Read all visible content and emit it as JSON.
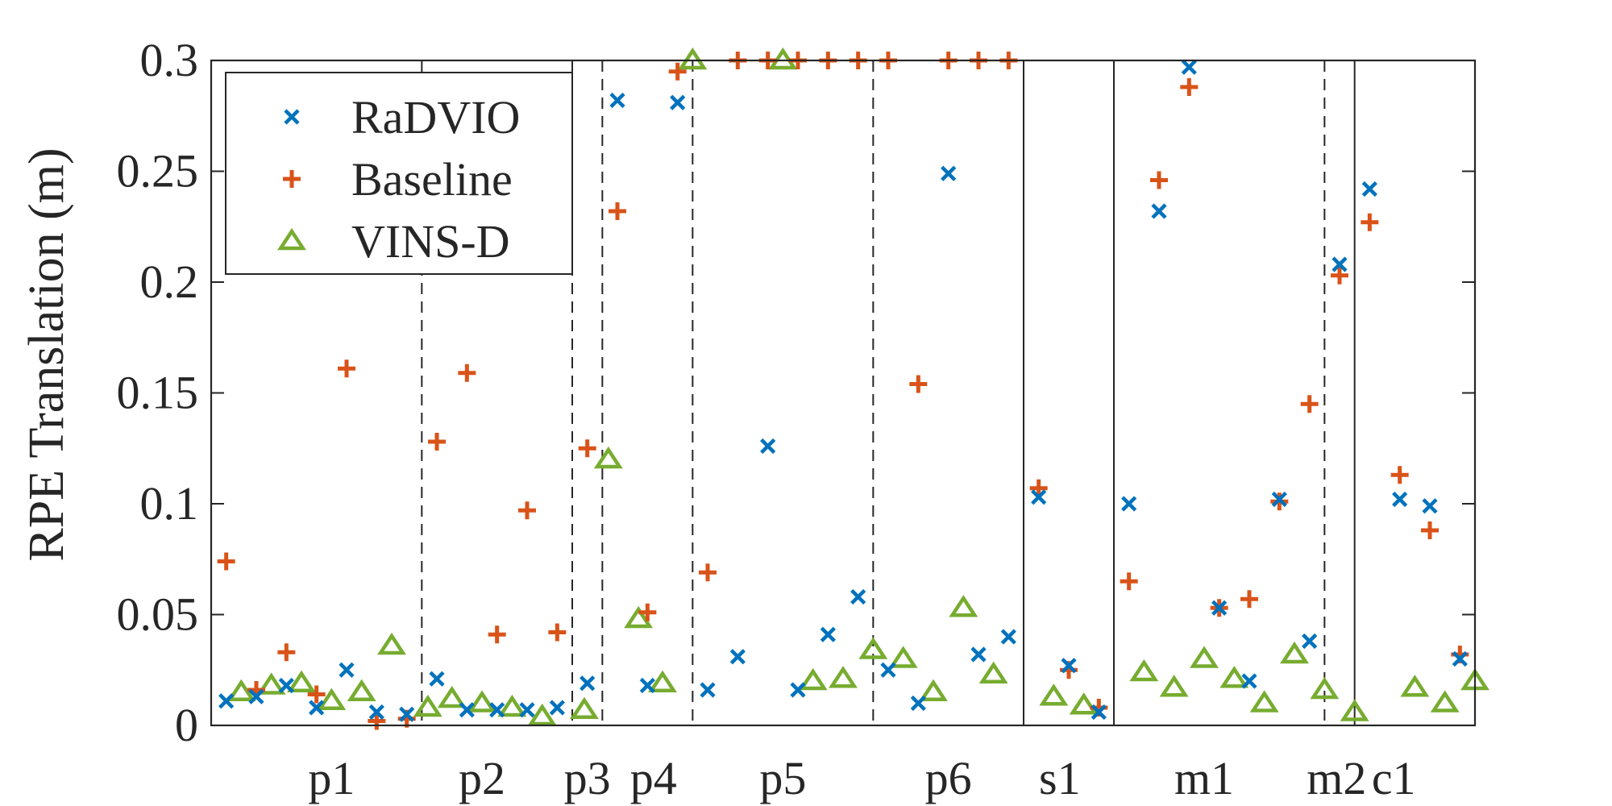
{
  "chart_data": {
    "type": "scatter",
    "title": "",
    "xlabel": "",
    "ylabel": "RPE Translation (m)",
    "ylim": [
      0,
      0.3
    ],
    "xlim": [
      0,
      42
    ],
    "yticks": [
      0,
      0.05,
      0.1,
      0.15,
      0.2,
      0.25,
      0.3
    ],
    "ytick_labels": [
      "0",
      "0.05",
      "0.1",
      "0.15",
      "0.2",
      "0.25",
      "0.3"
    ],
    "legend_position": "top-left",
    "groups": [
      {
        "label": "p1",
        "center": 4
      },
      {
        "label": "p2",
        "center": 9
      },
      {
        "label": "p3",
        "center": 12.5
      },
      {
        "label": "p4",
        "center": 14.7
      },
      {
        "label": "p5",
        "center": 19
      },
      {
        "label": "p6",
        "center": 24.5
      },
      {
        "label": "s1",
        "center": 28.2
      },
      {
        "label": "m1",
        "center": 33
      },
      {
        "label": "m2",
        "center": 37.4
      },
      {
        "label": "c1",
        "center": 39.3
      }
    ],
    "separators": [
      {
        "x": 7,
        "style": "dashed"
      },
      {
        "x": 12,
        "style": "dashed"
      },
      {
        "x": 13,
        "style": "dashed"
      },
      {
        "x": 16,
        "style": "dashed"
      },
      {
        "x": 22,
        "style": "dashed"
      },
      {
        "x": 27,
        "style": "solid"
      },
      {
        "x": 30,
        "style": "solid"
      },
      {
        "x": 37,
        "style": "dashed"
      },
      {
        "x": 38,
        "style": "solid"
      }
    ],
    "series": [
      {
        "name": "RaDVIO",
        "marker": "x",
        "color": "#0072BD",
        "x": [
          0.5,
          1.5,
          2.5,
          3.5,
          4.5,
          5.5,
          6.5,
          7.5,
          8.5,
          9.5,
          10.5,
          11.5,
          12.5,
          13.5,
          14.5,
          15.5,
          16.5,
          17.5,
          18.5,
          19.5,
          20.5,
          21.5,
          22.5,
          23.5,
          24.5,
          25.5,
          26.5,
          27.5,
          28.5,
          29.5,
          30.5,
          31.5,
          32.5,
          33.5,
          34.5,
          35.5,
          36.5,
          37.5,
          38.5,
          39.5,
          40.5,
          41.5
        ],
        "y": [
          0.011,
          0.013,
          0.018,
          0.008,
          0.025,
          0.006,
          0.005,
          0.021,
          0.007,
          0.007,
          0.007,
          0.008,
          0.019,
          0.282,
          0.018,
          0.281,
          0.016,
          0.031,
          0.126,
          0.016,
          0.041,
          0.058,
          0.025,
          0.01,
          0.249,
          0.032,
          0.04,
          0.103,
          0.027,
          0.006,
          0.1,
          0.232,
          0.297,
          0.053,
          0.02,
          0.102,
          0.038,
          0.208,
          0.242,
          0.102,
          0.099,
          0.03
        ]
      },
      {
        "name": "Baseline",
        "marker": "+",
        "color": "#D95319",
        "x": [
          0.5,
          1.5,
          2.5,
          3.5,
          4.5,
          5.5,
          6.5,
          7.5,
          8.5,
          9.5,
          10.5,
          11.5,
          12.5,
          13.5,
          14.5,
          15.5,
          16.5,
          17.5,
          18.5,
          19.5,
          20.5,
          21.5,
          22.5,
          23.5,
          24.5,
          25.5,
          26.5,
          27.5,
          28.5,
          29.5,
          30.5,
          31.5,
          32.5,
          33.5,
          34.5,
          35.5,
          36.5,
          37.5,
          38.5,
          39.5,
          40.5,
          41.5
        ],
        "y": [
          0.074,
          0.016,
          0.033,
          0.014,
          0.161,
          0.002,
          0.003,
          0.128,
          0.159,
          0.041,
          0.097,
          0.042,
          0.125,
          0.232,
          0.051,
          0.295,
          0.069,
          0.3,
          0.3,
          0.3,
          0.3,
          0.3,
          0.3,
          0.154,
          0.3,
          0.3,
          0.3,
          0.107,
          0.025,
          0.008,
          0.065,
          0.246,
          0.288,
          0.053,
          0.057,
          0.101,
          0.145,
          0.203,
          0.227,
          0.113,
          0.088,
          0.032
        ]
      },
      {
        "name": "VINS-D",
        "marker": "triangle",
        "color": "#77AC30",
        "x": [
          1,
          2,
          3,
          4,
          5,
          6,
          7.2,
          8,
          9,
          10,
          11,
          12.4,
          13.2,
          14.2,
          15,
          16,
          19,
          20,
          21,
          22,
          23,
          24,
          25,
          26,
          28,
          29,
          31,
          32,
          33,
          34,
          35,
          36,
          37,
          38,
          40,
          41,
          42
        ],
        "y": [
          0.015,
          0.018,
          0.019,
          0.011,
          0.015,
          0.036,
          0.008,
          0.012,
          0.01,
          0.008,
          0.004,
          0.007,
          0.12,
          0.048,
          0.019,
          0.3,
          0.3,
          0.02,
          0.021,
          0.034,
          0.03,
          0.015,
          0.053,
          0.023,
          0.013,
          0.009,
          0.024,
          0.017,
          0.03,
          0.021,
          0.01,
          0.032,
          0.016,
          0.006,
          0.017,
          0.01,
          0.02
        ]
      }
    ]
  }
}
